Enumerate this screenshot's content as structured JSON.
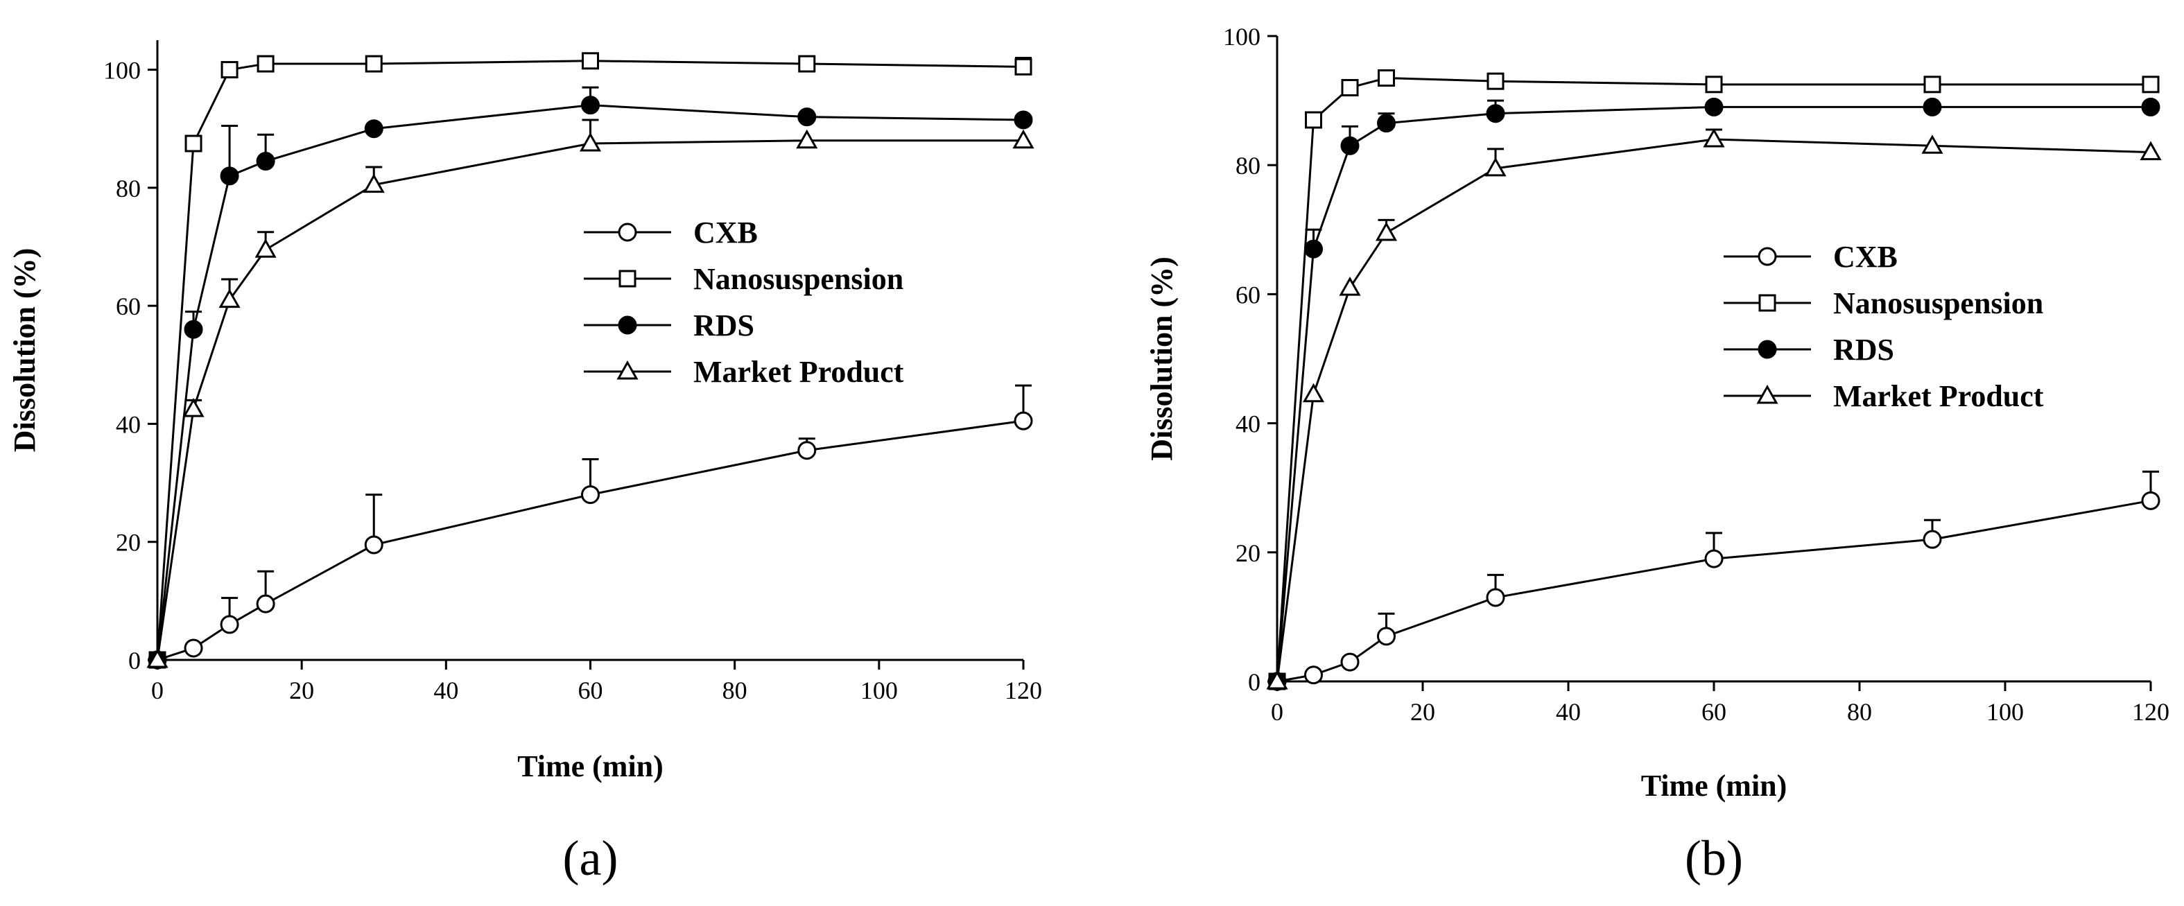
{
  "chart_data": [
    {
      "type": "line",
      "panel_label": "(a)",
      "xlabel": "Time (min)",
      "ylabel": "Dissolution (%)",
      "xlim": [
        0,
        120
      ],
      "ylim": [
        0,
        105
      ],
      "xticks": [
        0,
        20,
        40,
        60,
        80,
        100,
        120
      ],
      "yticks": [
        0,
        20,
        40,
        60,
        80,
        100
      ],
      "x": [
        0,
        5,
        10,
        15,
        30,
        60,
        90,
        120
      ],
      "legend_position": "right-center",
      "series": [
        {
          "name": "CXB",
          "marker": "circle-open",
          "values": [
            0,
            2,
            6,
            9.5,
            19.5,
            28,
            35.5,
            40.5
          ],
          "error": [
            0,
            0,
            4.5,
            5.5,
            8.5,
            6,
            2,
            6
          ]
        },
        {
          "name": "Nanosuspension",
          "marker": "square-open",
          "values": [
            0,
            87.5,
            100,
            101,
            101,
            101.5,
            101,
            100.5
          ],
          "error": [
            0,
            0,
            0,
            0,
            0,
            0,
            0,
            1.5
          ]
        },
        {
          "name": "RDS",
          "marker": "circle-filled",
          "values": [
            0,
            56,
            82,
            84.5,
            90,
            94,
            92,
            91.5
          ],
          "error": [
            0,
            3,
            8.5,
            4.5,
            0,
            3,
            0,
            0
          ]
        },
        {
          "name": "Market Product",
          "marker": "triangle-open",
          "values": [
            0,
            42.5,
            61,
            69.5,
            80.5,
            87.5,
            88,
            88
          ],
          "error": [
            0,
            1.5,
            3.5,
            3,
            3,
            4,
            0,
            0
          ]
        }
      ]
    },
    {
      "type": "line",
      "panel_label": "(b)",
      "xlabel": "Time (min)",
      "ylabel": "Dissolution (%)",
      "xlim": [
        0,
        120
      ],
      "ylim": [
        0,
        100
      ],
      "xticks": [
        0,
        20,
        40,
        60,
        80,
        100,
        120
      ],
      "yticks": [
        0,
        20,
        40,
        60,
        80,
        100
      ],
      "x": [
        0,
        5,
        10,
        15,
        30,
        60,
        90,
        120
      ],
      "legend_position": "right-center",
      "series": [
        {
          "name": "CXB",
          "marker": "circle-open",
          "values": [
            0,
            1,
            3,
            7,
            13,
            19,
            22,
            28
          ],
          "error": [
            0,
            0,
            0.5,
            3.5,
            3.5,
            4,
            3,
            4.5
          ]
        },
        {
          "name": "Nanosuspension",
          "marker": "square-open",
          "values": [
            0,
            87,
            92,
            93.5,
            93,
            92.5,
            92.5,
            92.5
          ],
          "error": [
            0,
            0,
            0,
            0,
            0,
            0,
            0,
            0
          ]
        },
        {
          "name": "RDS",
          "marker": "circle-filled",
          "values": [
            0,
            67,
            83,
            86.5,
            88,
            89,
            89,
            89
          ],
          "error": [
            0,
            3,
            3,
            1.5,
            2,
            0,
            0,
            0
          ]
        },
        {
          "name": "Market Product",
          "marker": "triangle-open",
          "values": [
            0,
            44.5,
            61,
            69.5,
            79.5,
            84,
            83,
            82
          ],
          "error": [
            0,
            0,
            0,
            2,
            3,
            1.5,
            0,
            0
          ]
        }
      ]
    }
  ]
}
